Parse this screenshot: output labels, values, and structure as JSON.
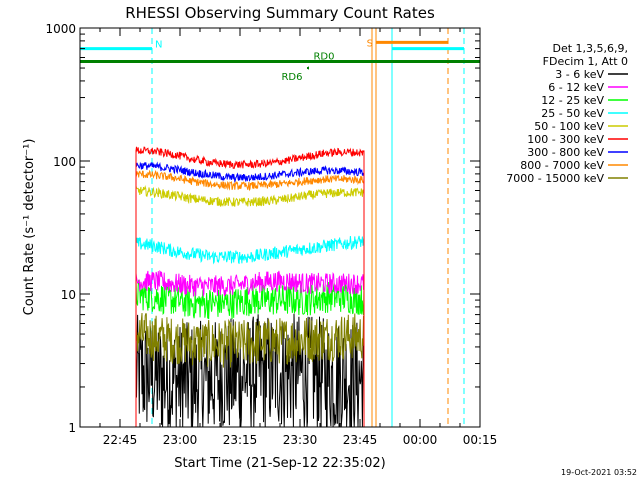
{
  "chart_data": {
    "type": "line",
    "title": "RHESSI Observing Summary Count Rates",
    "xlabel": "Start Time (21-Sep-12 22:35:02)",
    "ylabel": "Count Rate (s⁻¹ detector⁻¹)",
    "yscale": "log",
    "ylim": [
      1,
      1000
    ],
    "xlim_min": [
      0,
      100
    ],
    "x_unit": "minutes after 22:35:02",
    "x_ticks": [
      {
        "min": 10,
        "label": "22:45"
      },
      {
        "min": 25,
        "label": "23:00"
      },
      {
        "min": 40,
        "label": "23:15"
      },
      {
        "min": 55,
        "label": "23:30"
      },
      {
        "min": 70,
        "label": "23:45"
      },
      {
        "min": 85,
        "label": "00:00"
      },
      {
        "min": 100,
        "label": "00:15"
      }
    ],
    "y_ticks": [
      {
        "v": 1,
        "label": "1"
      },
      {
        "v": 10,
        "label": "10"
      },
      {
        "v": 100,
        "label": "100"
      },
      {
        "v": 1000,
        "label": "1000"
      }
    ],
    "data_span_min": [
      14,
      71
    ],
    "legend": {
      "header": [
        "Det 1,3,5,6,9,",
        "FDecim 1, Att 0"
      ],
      "placement": "right",
      "entries": [
        {
          "label": "3 - 6 keV",
          "color": "#000000"
        },
        {
          "label": "6 - 12 keV",
          "color": "#ff00ff"
        },
        {
          "label": "12 - 25 keV",
          "color": "#00ff00"
        },
        {
          "label": "25 - 50 keV",
          "color": "#00ffff"
        },
        {
          "label": "50 - 100 keV",
          "color": "#cccc00"
        },
        {
          "label": "100 - 300 keV",
          "color": "#ff0000"
        },
        {
          "label": "300 - 800 keV",
          "color": "#0000ff"
        },
        {
          "label": "800 - 7000 keV",
          "color": "#ff8800"
        },
        {
          "label": "7000 - 15000 keV",
          "color": "#808000"
        }
      ]
    },
    "series": [
      {
        "name": "3 - 6 keV",
        "color": "#000000",
        "values": [
          2.5,
          2.4,
          2.2,
          2.2,
          2.3,
          2.4,
          2.5,
          2.6,
          2.6,
          2.5,
          2.4,
          2.4,
          2.3
        ]
      },
      {
        "name": "6 - 12 keV",
        "color": "#ff00ff",
        "values": [
          12.5,
          12.5,
          12.0,
          11.5,
          11.5,
          11.5,
          12.0,
          12.5,
          12.5,
          12.0,
          12.0,
          12.0,
          12.0
        ]
      },
      {
        "name": "12 - 25 keV",
        "color": "#00ff00",
        "values": [
          10.0,
          9.5,
          9.0,
          8.5,
          8.5,
          8.5,
          9.0,
          9.0,
          9.0,
          9.0,
          9.5,
          9.5,
          9.0
        ]
      },
      {
        "name": "25 - 50 keV",
        "color": "#00ffff",
        "values": [
          24,
          23,
          21,
          20,
          19,
          19,
          19,
          20,
          21,
          22,
          23,
          24,
          25
        ]
      },
      {
        "name": "50 - 100 keV",
        "color": "#cccc00",
        "values": [
          60,
          58,
          55,
          52,
          50,
          49,
          49,
          50,
          52,
          55,
          57,
          58,
          58
        ]
      },
      {
        "name": "100 - 300 keV",
        "color": "#ff0000",
        "values": [
          120,
          118,
          112,
          103,
          97,
          94,
          94,
          96,
          101,
          108,
          115,
          117,
          115
        ]
      },
      {
        "name": "300 - 800 keV",
        "color": "#0000ff",
        "values": [
          93,
          91,
          87,
          82,
          78,
          75,
          75,
          77,
          80,
          83,
          85,
          84,
          82
        ]
      },
      {
        "name": "800 - 7000 keV",
        "color": "#ff8800",
        "values": [
          80,
          78,
          75,
          70,
          67,
          65,
          65,
          66,
          68,
          71,
          73,
          73,
          72
        ]
      },
      {
        "name": "7000 - 15000 keV",
        "color": "#808000",
        "values": [
          5.0,
          4.7,
          4.5,
          4.3,
          4.2,
          4.2,
          4.3,
          4.4,
          4.5,
          4.6,
          4.7,
          4.8,
          4.8
        ]
      }
    ],
    "flags": [
      {
        "label": "N",
        "color": "#00ffff",
        "level": 700,
        "segments": [
          [
            0,
            18
          ],
          [
            78,
            96
          ]
        ]
      },
      {
        "label": "S",
        "color": "#ff8800",
        "level": 780,
        "segments": [
          [
            74,
            92
          ]
        ]
      },
      {
        "label": "RD0",
        "color": "#008000",
        "level": 560,
        "segments": [
          [
            0,
            100
          ]
        ]
      },
      {
        "label": "RD6",
        "color": "#008000",
        "level": 500,
        "segments": [
          [
            57,
            57.2
          ]
        ]
      }
    ],
    "verticals": [
      {
        "min": 0,
        "color": "#00ffff",
        "dashed": false
      },
      {
        "min": 18,
        "color": "#00ffff",
        "dashed": true
      },
      {
        "min": 73,
        "color": "#ff8800",
        "dashed": false
      },
      {
        "min": 74,
        "color": "#ff8800",
        "dashed": false
      },
      {
        "min": 78,
        "color": "#00ffff",
        "dashed": false
      },
      {
        "min": 92,
        "color": "#ff8800",
        "dashed": true
      },
      {
        "min": 96,
        "color": "#00ffff",
        "dashed": true
      }
    ],
    "grid": false,
    "footer": "19-Oct-2021 03:52"
  }
}
